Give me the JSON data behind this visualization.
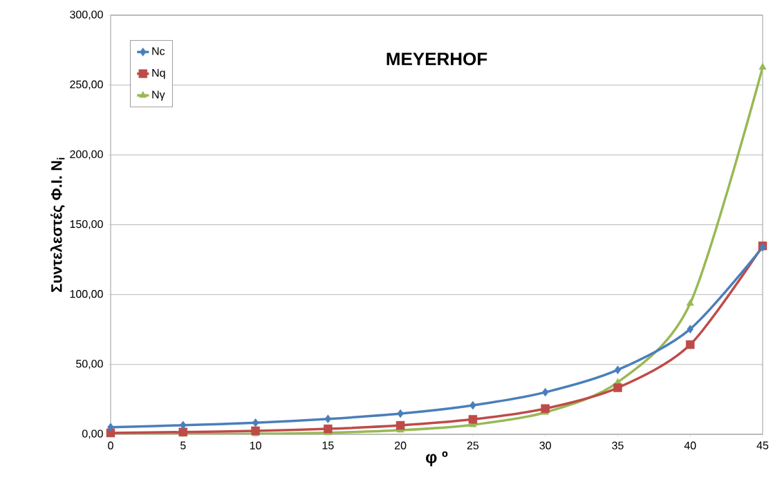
{
  "chart_data": {
    "type": "line",
    "title": "MEYERHOF",
    "xlabel": "φ º",
    "ylabel": "Συντελεστές Φ.Ι. N$_{i}$",
    "x": [
      0,
      5,
      10,
      15,
      20,
      25,
      30,
      35,
      40,
      45
    ],
    "series": [
      {
        "name": "Nc",
        "color": "#4a7ebb",
        "marker": "diamond",
        "values": [
          5.1,
          6.5,
          8.3,
          11.0,
          14.8,
          20.7,
          30.1,
          46.1,
          75.3,
          133.9
        ]
      },
      {
        "name": "Nq",
        "color": "#be4b48",
        "marker": "square",
        "values": [
          1.0,
          1.6,
          2.5,
          3.9,
          6.4,
          10.7,
          18.4,
          33.3,
          64.2,
          134.9
        ]
      },
      {
        "name": "Nγ",
        "color": "#98b954",
        "marker": "triangle",
        "values": [
          0.0,
          0.1,
          0.4,
          1.1,
          2.9,
          6.8,
          15.7,
          37.2,
          93.7,
          262.7
        ]
      }
    ],
    "xlim": [
      0,
      45
    ],
    "xticks": [
      0,
      5,
      10,
      15,
      20,
      25,
      30,
      35,
      40,
      45
    ],
    "ylim": [
      0,
      300
    ],
    "yticks": [
      {
        "value": 0,
        "label": "0,00"
      },
      {
        "value": 50,
        "label": "50,00"
      },
      {
        "value": 100,
        "label": "100,00"
      },
      {
        "value": 150,
        "label": "150,00"
      },
      {
        "value": 200,
        "label": "200,00"
      },
      {
        "value": 250,
        "label": "250,00"
      },
      {
        "value": 300,
        "label": "300,00"
      }
    ],
    "grid": "y",
    "legend": "top left",
    "line_style": "solid"
  }
}
